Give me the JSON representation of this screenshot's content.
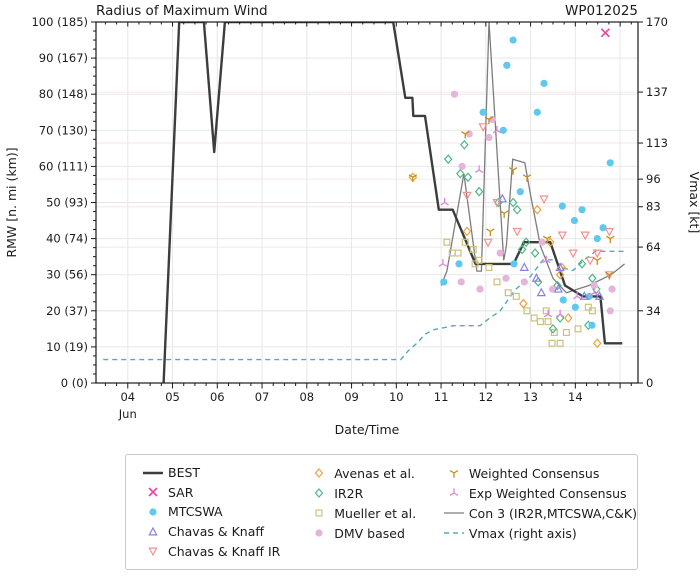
{
  "chart_data": {
    "type": "line",
    "title": "Radius of Maximum Wind",
    "storm_id": "WP012025",
    "xlabel": "Date/Time",
    "ylabel_left": "RMW [n. mi (km)]",
    "ylabel_right": "Vmax [kt]",
    "x_axis": {
      "month_label": "Jun",
      "range": [
        3.29,
        15.4
      ],
      "major_days": [
        4,
        5,
        6,
        7,
        8,
        9,
        10,
        11,
        12,
        13,
        14,
        15
      ],
      "tick_labels": [
        "04",
        "05",
        "06",
        "07",
        "08",
        "09",
        "10",
        "11",
        "12",
        "13",
        "14"
      ],
      "minor_step": 0.25
    },
    "y_left": {
      "max": 100,
      "minor_step": 2.5,
      "ticks": [
        {
          "value": 0,
          "label": "0 (0)"
        },
        {
          "value": 10,
          "label": "10 (19)"
        },
        {
          "value": 20,
          "label": "20 (37)"
        },
        {
          "value": 30,
          "label": "30 (56)"
        },
        {
          "value": 40,
          "label": "40 (74)"
        },
        {
          "value": 50,
          "label": "50 (93)"
        },
        {
          "value": 60,
          "label": "60 (111)"
        },
        {
          "value": 70,
          "label": "70 (130)"
        },
        {
          "value": 80,
          "label": "80 (148)"
        },
        {
          "value": 90,
          "label": "90 (167)"
        },
        {
          "value": 100,
          "label": "100 (185)"
        }
      ]
    },
    "y_right": {
      "max": 170,
      "ticks": [
        {
          "value": 0,
          "label": "0"
        },
        {
          "value": 34,
          "label": "34"
        },
        {
          "value": 64,
          "label": "64"
        },
        {
          "value": 83,
          "label": "83"
        },
        {
          "value": 96,
          "label": "96"
        },
        {
          "value": 113,
          "label": "113"
        },
        {
          "value": 137,
          "label": "137"
        },
        {
          "value": 170,
          "label": "170"
        }
      ]
    },
    "colors": {
      "spine": "#1a1a1a",
      "grid": "#e8e8e8",
      "grid_right": "#f6e6e2",
      "text": "#1c1c1c"
    },
    "series": {
      "best": {
        "label": "BEST",
        "type": "line",
        "color": "#3d3d3d",
        "width": 2.4,
        "points": [
          [
            4.8,
            0
          ],
          [
            5.15,
            100
          ],
          [
            5.7,
            100
          ],
          [
            5.93,
            64
          ],
          [
            6.17,
            100
          ],
          [
            9.93,
            100
          ],
          [
            10.2,
            79
          ],
          [
            10.36,
            79
          ],
          [
            10.38,
            74
          ],
          [
            10.64,
            74
          ],
          [
            10.95,
            48
          ],
          [
            11.26,
            48
          ],
          [
            11.77,
            33
          ],
          [
            12.62,
            33
          ],
          [
            12.85,
            39
          ],
          [
            13.44,
            39
          ],
          [
            13.77,
            27
          ],
          [
            14.17,
            24
          ],
          [
            14.56,
            24
          ],
          [
            14.66,
            11
          ],
          [
            15.05,
            11
          ]
        ]
      },
      "con3": {
        "label": "Con 3 (IR2R,MTCSWA,C&K)",
        "type": "line",
        "color": "#7d7d7d",
        "width": 1.3,
        "points": [
          [
            11.0,
            27
          ],
          [
            11.13,
            31
          ],
          [
            11.51,
            58
          ],
          [
            11.8,
            31
          ],
          [
            11.9,
            31
          ],
          [
            12.07,
            100
          ],
          [
            12.4,
            34
          ],
          [
            12.46,
            38
          ],
          [
            12.6,
            62
          ],
          [
            12.87,
            61
          ],
          [
            13.0,
            52
          ],
          [
            13.22,
            38
          ],
          [
            13.5,
            29
          ],
          [
            13.8,
            25
          ],
          [
            14.3,
            27
          ],
          [
            14.8,
            30
          ],
          [
            15.1,
            33
          ]
        ]
      },
      "vmax": {
        "label": "Vmax (right axis)",
        "type": "line",
        "color": "#54abb9",
        "width": 1.4,
        "dash": "5 4",
        "axis": "right",
        "points": [
          [
            3.45,
            11
          ],
          [
            10.1,
            11
          ],
          [
            10.26,
            15
          ],
          [
            10.47,
            19
          ],
          [
            10.64,
            23
          ],
          [
            10.82,
            25
          ],
          [
            11.27,
            27
          ],
          [
            11.87,
            27
          ],
          [
            12.05,
            30
          ],
          [
            12.32,
            34
          ],
          [
            12.66,
            44
          ],
          [
            12.99,
            50
          ],
          [
            13.28,
            58
          ],
          [
            13.5,
            58
          ],
          [
            13.75,
            54
          ],
          [
            13.95,
            53
          ],
          [
            14.2,
            58
          ],
          [
            14.45,
            62
          ],
          [
            15.15,
            62
          ]
        ]
      },
      "sar": {
        "label": "SAR",
        "type": "scatter",
        "marker": "x",
        "color": "#f2459c",
        "points": [
          [
            14.67,
            97
          ]
        ]
      },
      "mtcswa": {
        "label": "MTCSWA",
        "type": "scatter",
        "marker": "circle",
        "filled": true,
        "color": "#5ec8ed",
        "points": [
          [
            11.06,
            28
          ],
          [
            11.4,
            33
          ],
          [
            11.94,
            75
          ],
          [
            12.39,
            70
          ],
          [
            12.47,
            88
          ],
          [
            12.61,
            95
          ],
          [
            12.63,
            33
          ],
          [
            12.77,
            53
          ],
          [
            13.15,
            75
          ],
          [
            13.3,
            83
          ],
          [
            13.71,
            49
          ],
          [
            13.73,
            23
          ],
          [
            13.98,
            45
          ],
          [
            14.0,
            21
          ],
          [
            14.15,
            48
          ],
          [
            14.31,
            24
          ],
          [
            14.37,
            16
          ],
          [
            14.49,
            40
          ],
          [
            14.62,
            43
          ],
          [
            14.78,
            61
          ]
        ]
      },
      "ck": {
        "label": "Chavas & Knaff",
        "type": "scatter",
        "marker": "triangle-up",
        "color": "#8b7fe3",
        "points": [
          [
            12.37,
            51
          ],
          [
            12.86,
            32
          ],
          [
            13.13,
            29
          ],
          [
            13.24,
            25
          ],
          [
            13.62,
            26
          ],
          [
            13.66,
            32
          ],
          [
            14.2,
            24
          ],
          [
            14.54,
            24
          ]
        ]
      },
      "ck_ir": {
        "label": "Chavas & Knaff IR",
        "type": "scatter",
        "marker": "triangle-down",
        "color": "#f29290",
        "points": [
          [
            11.58,
            52
          ],
          [
            11.94,
            71
          ],
          [
            12.05,
            39
          ],
          [
            12.25,
            50
          ],
          [
            12.7,
            42
          ],
          [
            13.3,
            51
          ],
          [
            13.71,
            41
          ],
          [
            13.95,
            36
          ],
          [
            14.22,
            41
          ],
          [
            14.33,
            34
          ],
          [
            14.49,
            36
          ],
          [
            14.76,
            42
          ],
          [
            14.76,
            30
          ]
        ]
      },
      "avenas": {
        "label": "Avenas et al.",
        "type": "scatter",
        "marker": "diamond",
        "color": "#eba23f",
        "points": [
          [
            10.37,
            57
          ],
          [
            11.58,
            42
          ],
          [
            12.84,
            22
          ],
          [
            13.15,
            48
          ],
          [
            13.44,
            39
          ],
          [
            13.66,
            30
          ],
          [
            13.7,
            32
          ],
          [
            13.84,
            18
          ],
          [
            14.49,
            11
          ]
        ]
      },
      "ir2r": {
        "label": "IR2R",
        "type": "scatter",
        "marker": "diamond",
        "color": "#4db885",
        "points": [
          [
            11.16,
            62
          ],
          [
            11.43,
            58
          ],
          [
            11.52,
            66
          ],
          [
            11.6,
            57
          ],
          [
            11.85,
            53
          ],
          [
            12.28,
            50
          ],
          [
            12.61,
            50
          ],
          [
            12.7,
            48
          ],
          [
            12.81,
            37
          ],
          [
            12.9,
            39
          ],
          [
            13.1,
            36
          ],
          [
            13.17,
            28
          ],
          [
            13.5,
            15
          ],
          [
            13.6,
            27
          ],
          [
            13.66,
            18
          ],
          [
            14.15,
            33
          ],
          [
            14.29,
            16
          ],
          [
            14.38,
            29
          ],
          [
            14.47,
            26
          ]
        ]
      },
      "mueller": {
        "label": "Mueller et al.",
        "type": "scatter",
        "marker": "square",
        "color": "#cbc17c",
        "points": [
          [
            11.13,
            39
          ],
          [
            11.25,
            36
          ],
          [
            11.38,
            36
          ],
          [
            11.54,
            39
          ],
          [
            11.72,
            37
          ],
          [
            11.76,
            33
          ],
          [
            11.85,
            34
          ],
          [
            12.07,
            32
          ],
          [
            12.25,
            28
          ],
          [
            12.5,
            25
          ],
          [
            12.68,
            24
          ],
          [
            12.92,
            20
          ],
          [
            13.08,
            18
          ],
          [
            13.22,
            17
          ],
          [
            13.35,
            20
          ],
          [
            13.39,
            17
          ],
          [
            13.48,
            11
          ],
          [
            13.53,
            14
          ],
          [
            13.66,
            11
          ],
          [
            13.8,
            14
          ],
          [
            14.06,
            15
          ],
          [
            14.29,
            21
          ],
          [
            14.38,
            20
          ]
        ]
      },
      "dmv": {
        "label": "DMV based",
        "type": "scatter",
        "marker": "circle",
        "filled": true,
        "color": "#e4b4da",
        "points": [
          [
            11.3,
            80
          ],
          [
            11.45,
            28
          ],
          [
            11.47,
            60
          ],
          [
            11.63,
            69
          ],
          [
            11.87,
            26
          ],
          [
            12.07,
            68
          ],
          [
            12.14,
            73
          ],
          [
            12.32,
            36
          ],
          [
            12.45,
            29
          ],
          [
            12.86,
            28
          ],
          [
            13.26,
            39
          ],
          [
            13.49,
            26
          ],
          [
            14.42,
            27
          ],
          [
            14.78,
            20
          ],
          [
            14.82,
            26
          ]
        ]
      },
      "wc": {
        "label": "Weighted Consensus",
        "type": "scatter",
        "marker": "tri-y-down",
        "color": "#c29111",
        "points": [
          [
            10.37,
            57
          ],
          [
            11.54,
            69
          ],
          [
            12.07,
            73
          ],
          [
            12.1,
            42
          ],
          [
            12.41,
            47
          ],
          [
            12.61,
            59
          ],
          [
            12.92,
            57
          ],
          [
            13.37,
            40
          ],
          [
            14.49,
            34
          ],
          [
            14.76,
            30
          ],
          [
            14.78,
            40
          ]
        ]
      },
      "ewc": {
        "label": "Exp Weighted Consensus",
        "type": "scatter",
        "marker": "tri-y-up",
        "color": "#dc85dc",
        "points": [
          [
            11.04,
            33
          ],
          [
            11.08,
            50
          ],
          [
            11.85,
            59
          ],
          [
            12.25,
            70
          ],
          [
            13.35,
            34
          ],
          [
            13.39,
            19
          ],
          [
            13.66,
            19
          ],
          [
            14.04,
            24
          ],
          [
            14.42,
            25
          ]
        ]
      }
    },
    "legend_columns": [
      [
        "best",
        "sar",
        "mtcswa",
        "ck",
        "ck_ir"
      ],
      [
        "avenas",
        "ir2r",
        "mueller",
        "dmv"
      ],
      [
        "wc",
        "ewc",
        "con3",
        "vmax"
      ]
    ]
  }
}
